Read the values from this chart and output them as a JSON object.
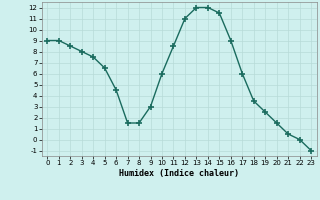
{
  "x": [
    0,
    1,
    2,
    3,
    4,
    5,
    6,
    7,
    8,
    9,
    10,
    11,
    12,
    13,
    14,
    15,
    16,
    17,
    18,
    19,
    20,
    21,
    22,
    23
  ],
  "y": [
    9,
    9,
    8.5,
    8,
    7.5,
    6.5,
    4.5,
    1.5,
    1.5,
    3,
    6,
    8.5,
    11,
    12,
    12,
    11.5,
    9,
    6,
    3.5,
    2.5,
    1.5,
    0.5,
    0,
    -1
  ],
  "line_color": "#1a6b5e",
  "marker": "+",
  "marker_size": 4,
  "marker_lw": 1.2,
  "line_width": 1.0,
  "bg_color": "#cff0ee",
  "grid_color": "#b8dbd8",
  "xlabel": "Humidex (Indice chaleur)",
  "xlim": [
    -0.5,
    23.5
  ],
  "ylim": [
    -1.5,
    12.5
  ],
  "xticks": [
    0,
    1,
    2,
    3,
    4,
    5,
    6,
    7,
    8,
    9,
    10,
    11,
    12,
    13,
    14,
    15,
    16,
    17,
    18,
    19,
    20,
    21,
    22,
    23
  ],
  "yticks": [
    -1,
    0,
    1,
    2,
    3,
    4,
    5,
    6,
    7,
    8,
    9,
    10,
    11,
    12
  ]
}
